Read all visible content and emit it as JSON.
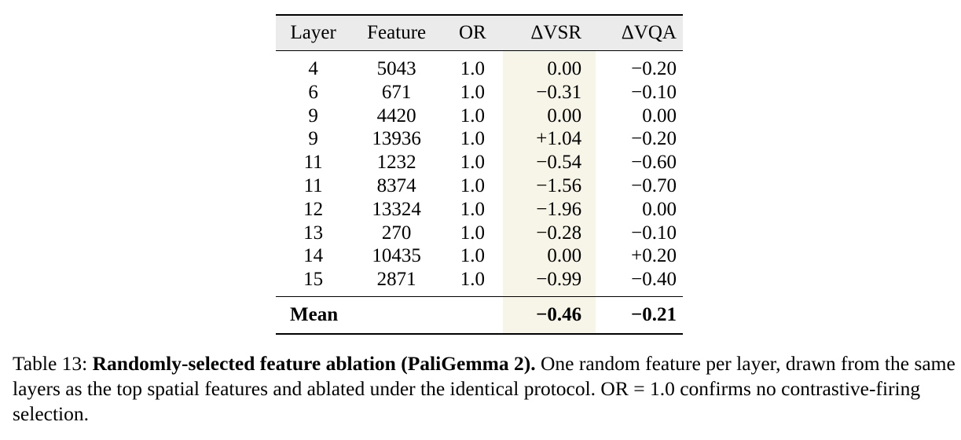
{
  "table": {
    "headers": [
      "Layer",
      "Feature",
      "OR",
      "ΔVSR",
      "ΔVQA"
    ],
    "rows": [
      [
        "4",
        "5043",
        "1.0",
        "0.00",
        "−0.20"
      ],
      [
        "6",
        "671",
        "1.0",
        "−0.31",
        "−0.10"
      ],
      [
        "9",
        "4420",
        "1.0",
        "0.00",
        "0.00"
      ],
      [
        "9",
        "13936",
        "1.0",
        "+1.04",
        "−0.20"
      ],
      [
        "11",
        "1232",
        "1.0",
        "−0.54",
        "−0.60"
      ],
      [
        "11",
        "8374",
        "1.0",
        "−1.56",
        "−0.70"
      ],
      [
        "12",
        "13324",
        "1.0",
        "−1.96",
        "0.00"
      ],
      [
        "13",
        "270",
        "1.0",
        "−0.28",
        "−0.10"
      ],
      [
        "14",
        "10435",
        "1.0",
        "0.00",
        "+0.20"
      ],
      [
        "15",
        "2871",
        "1.0",
        "−0.99",
        "−0.40"
      ]
    ],
    "mean": {
      "label": "Mean",
      "vsr": "−0.46",
      "vqa": "−0.21"
    },
    "highlight_column_color": "#f7f4e8",
    "header_background_color": "#ebebeb"
  },
  "caption": {
    "label": "Table 13:",
    "title": "Randomly-selected feature ablation (PaliGemma 2).",
    "body": "One random feature per layer, drawn from the same layers as the top spatial features and ablated under the identical protocol. OR = 1.0 confirms no contrastive-firing selection."
  }
}
